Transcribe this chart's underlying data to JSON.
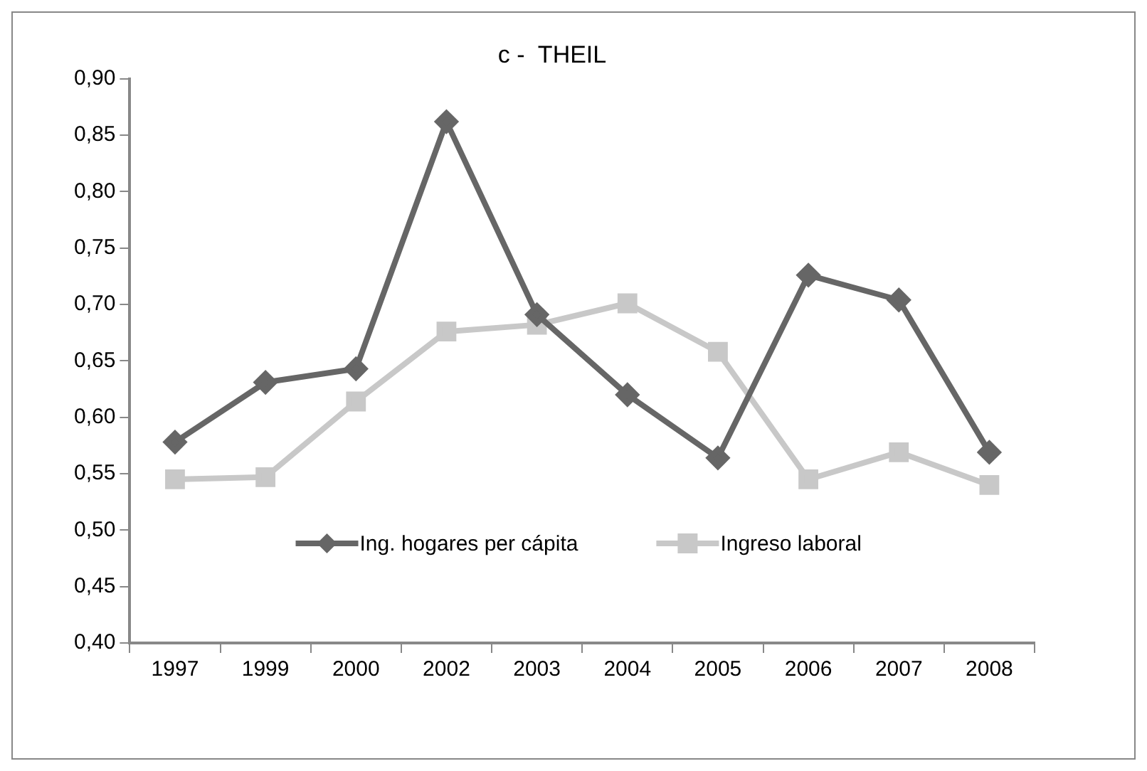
{
  "chart_data": {
    "type": "line",
    "title": "c -  THEIL",
    "categories": [
      "1997",
      "1999",
      "2000",
      "2002",
      "2003",
      "2004",
      "2005",
      "2006",
      "2007",
      "2008"
    ],
    "series": [
      {
        "name": "Ing. hogares per cápita",
        "color": "#666666",
        "marker": "diamond",
        "values": [
          0.578,
          0.631,
          0.643,
          0.862,
          0.691,
          0.62,
          0.564,
          0.726,
          0.704,
          0.569
        ]
      },
      {
        "name": "Ingreso laboral",
        "color": "#c8c8c8",
        "marker": "square",
        "values": [
          0.545,
          0.547,
          0.614,
          0.676,
          0.682,
          0.701,
          0.658,
          0.545,
          0.569,
          0.54
        ]
      }
    ],
    "ylim": [
      0.4,
      0.9
    ],
    "yticks": [
      {
        "value": 0.4,
        "label": "0,40"
      },
      {
        "value": 0.45,
        "label": "0,45"
      },
      {
        "value": 0.5,
        "label": "0,50"
      },
      {
        "value": 0.55,
        "label": "0,55"
      },
      {
        "value": 0.6,
        "label": "0,60"
      },
      {
        "value": 0.65,
        "label": "0,65"
      },
      {
        "value": 0.7,
        "label": "0,70"
      },
      {
        "value": 0.75,
        "label": "0,75"
      },
      {
        "value": 0.8,
        "label": "0,80"
      },
      {
        "value": 0.85,
        "label": "0,85"
      },
      {
        "value": 0.9,
        "label": "0,90"
      }
    ],
    "grid": false,
    "legend": "bottom",
    "line_style": "solid"
  }
}
